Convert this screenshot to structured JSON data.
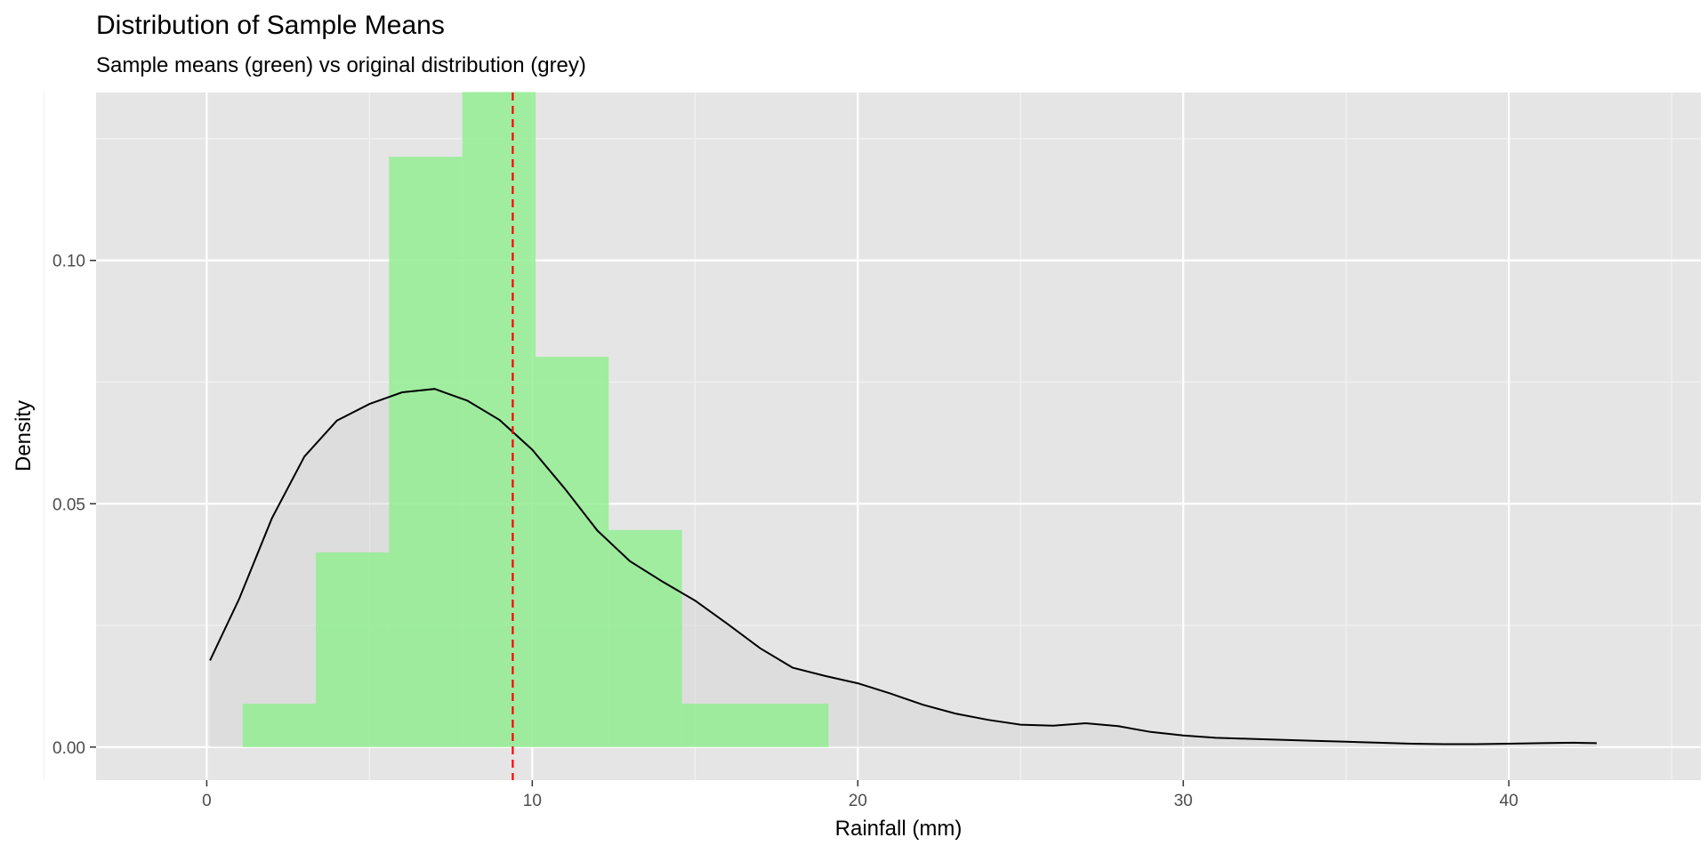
{
  "chart_data": {
    "type": "bar",
    "title": "Distribution of Sample Means",
    "subtitle": "Sample means (green) vs original distribution (grey)",
    "xlabel": "Rainfall (mm)",
    "ylabel": "Density",
    "xlim": [
      -3.4,
      45.9
    ],
    "ylim": [
      -0.0068,
      0.1345
    ],
    "x_ticks": [
      0,
      10,
      20,
      30,
      40
    ],
    "x_tick_labels": [
      "0",
      "10",
      "20",
      "30",
      "40"
    ],
    "y_ticks": [
      0.0,
      0.05,
      0.1
    ],
    "y_tick_labels": [
      "0.00",
      "0.05",
      "0.10"
    ],
    "grid": true,
    "histogram": {
      "color": "#90ee90",
      "bins": [
        {
          "x0": 1.1,
          "x1": 3.35,
          "density": 0.0089
        },
        {
          "x0": 3.35,
          "x1": 5.6,
          "density": 0.04
        },
        {
          "x0": 5.6,
          "x1": 7.85,
          "density": 0.1213
        },
        {
          "x0": 7.85,
          "x1": 10.1,
          "density": 0.1346
        },
        {
          "x0": 10.1,
          "x1": 12.35,
          "density": 0.0802
        },
        {
          "x0": 12.35,
          "x1": 14.6,
          "density": 0.0446
        },
        {
          "x0": 14.6,
          "x1": 16.85,
          "density": 0.0089
        },
        {
          "x0": 16.85,
          "x1": 19.1,
          "density": 0.0089
        }
      ]
    },
    "density_curve": {
      "color": "#000000",
      "fill": "#d3d3d3",
      "x": [
        0.1,
        1,
        2,
        3,
        4,
        5,
        6,
        7,
        8,
        9,
        10,
        11,
        12,
        13,
        14,
        15,
        16,
        17,
        18,
        19,
        20,
        21,
        22,
        23,
        24,
        25,
        26,
        27,
        28,
        29,
        30,
        31,
        32,
        33,
        34,
        35,
        36,
        37,
        38,
        39,
        40,
        41,
        42,
        42.7
      ],
      "y": [
        0.0178,
        0.0305,
        0.047,
        0.0597,
        0.0671,
        0.0705,
        0.0729,
        0.0736,
        0.0712,
        0.0672,
        0.0611,
        0.0531,
        0.0445,
        0.0382,
        0.034,
        0.0301,
        0.0253,
        0.0203,
        0.0163,
        0.0146,
        0.0131,
        0.011,
        0.0087,
        0.0069,
        0.0056,
        0.0046,
        0.0044,
        0.0049,
        0.0043,
        0.0031,
        0.0024,
        0.0019,
        0.0017,
        0.0015,
        0.0013,
        0.0011,
        0.0009,
        0.0007,
        0.0006,
        0.0006,
        0.0007,
        0.0008,
        0.0009,
        0.0008
      ]
    },
    "mean_line": {
      "x": 9.4,
      "color": "#ff0000",
      "style": "dashed"
    }
  }
}
